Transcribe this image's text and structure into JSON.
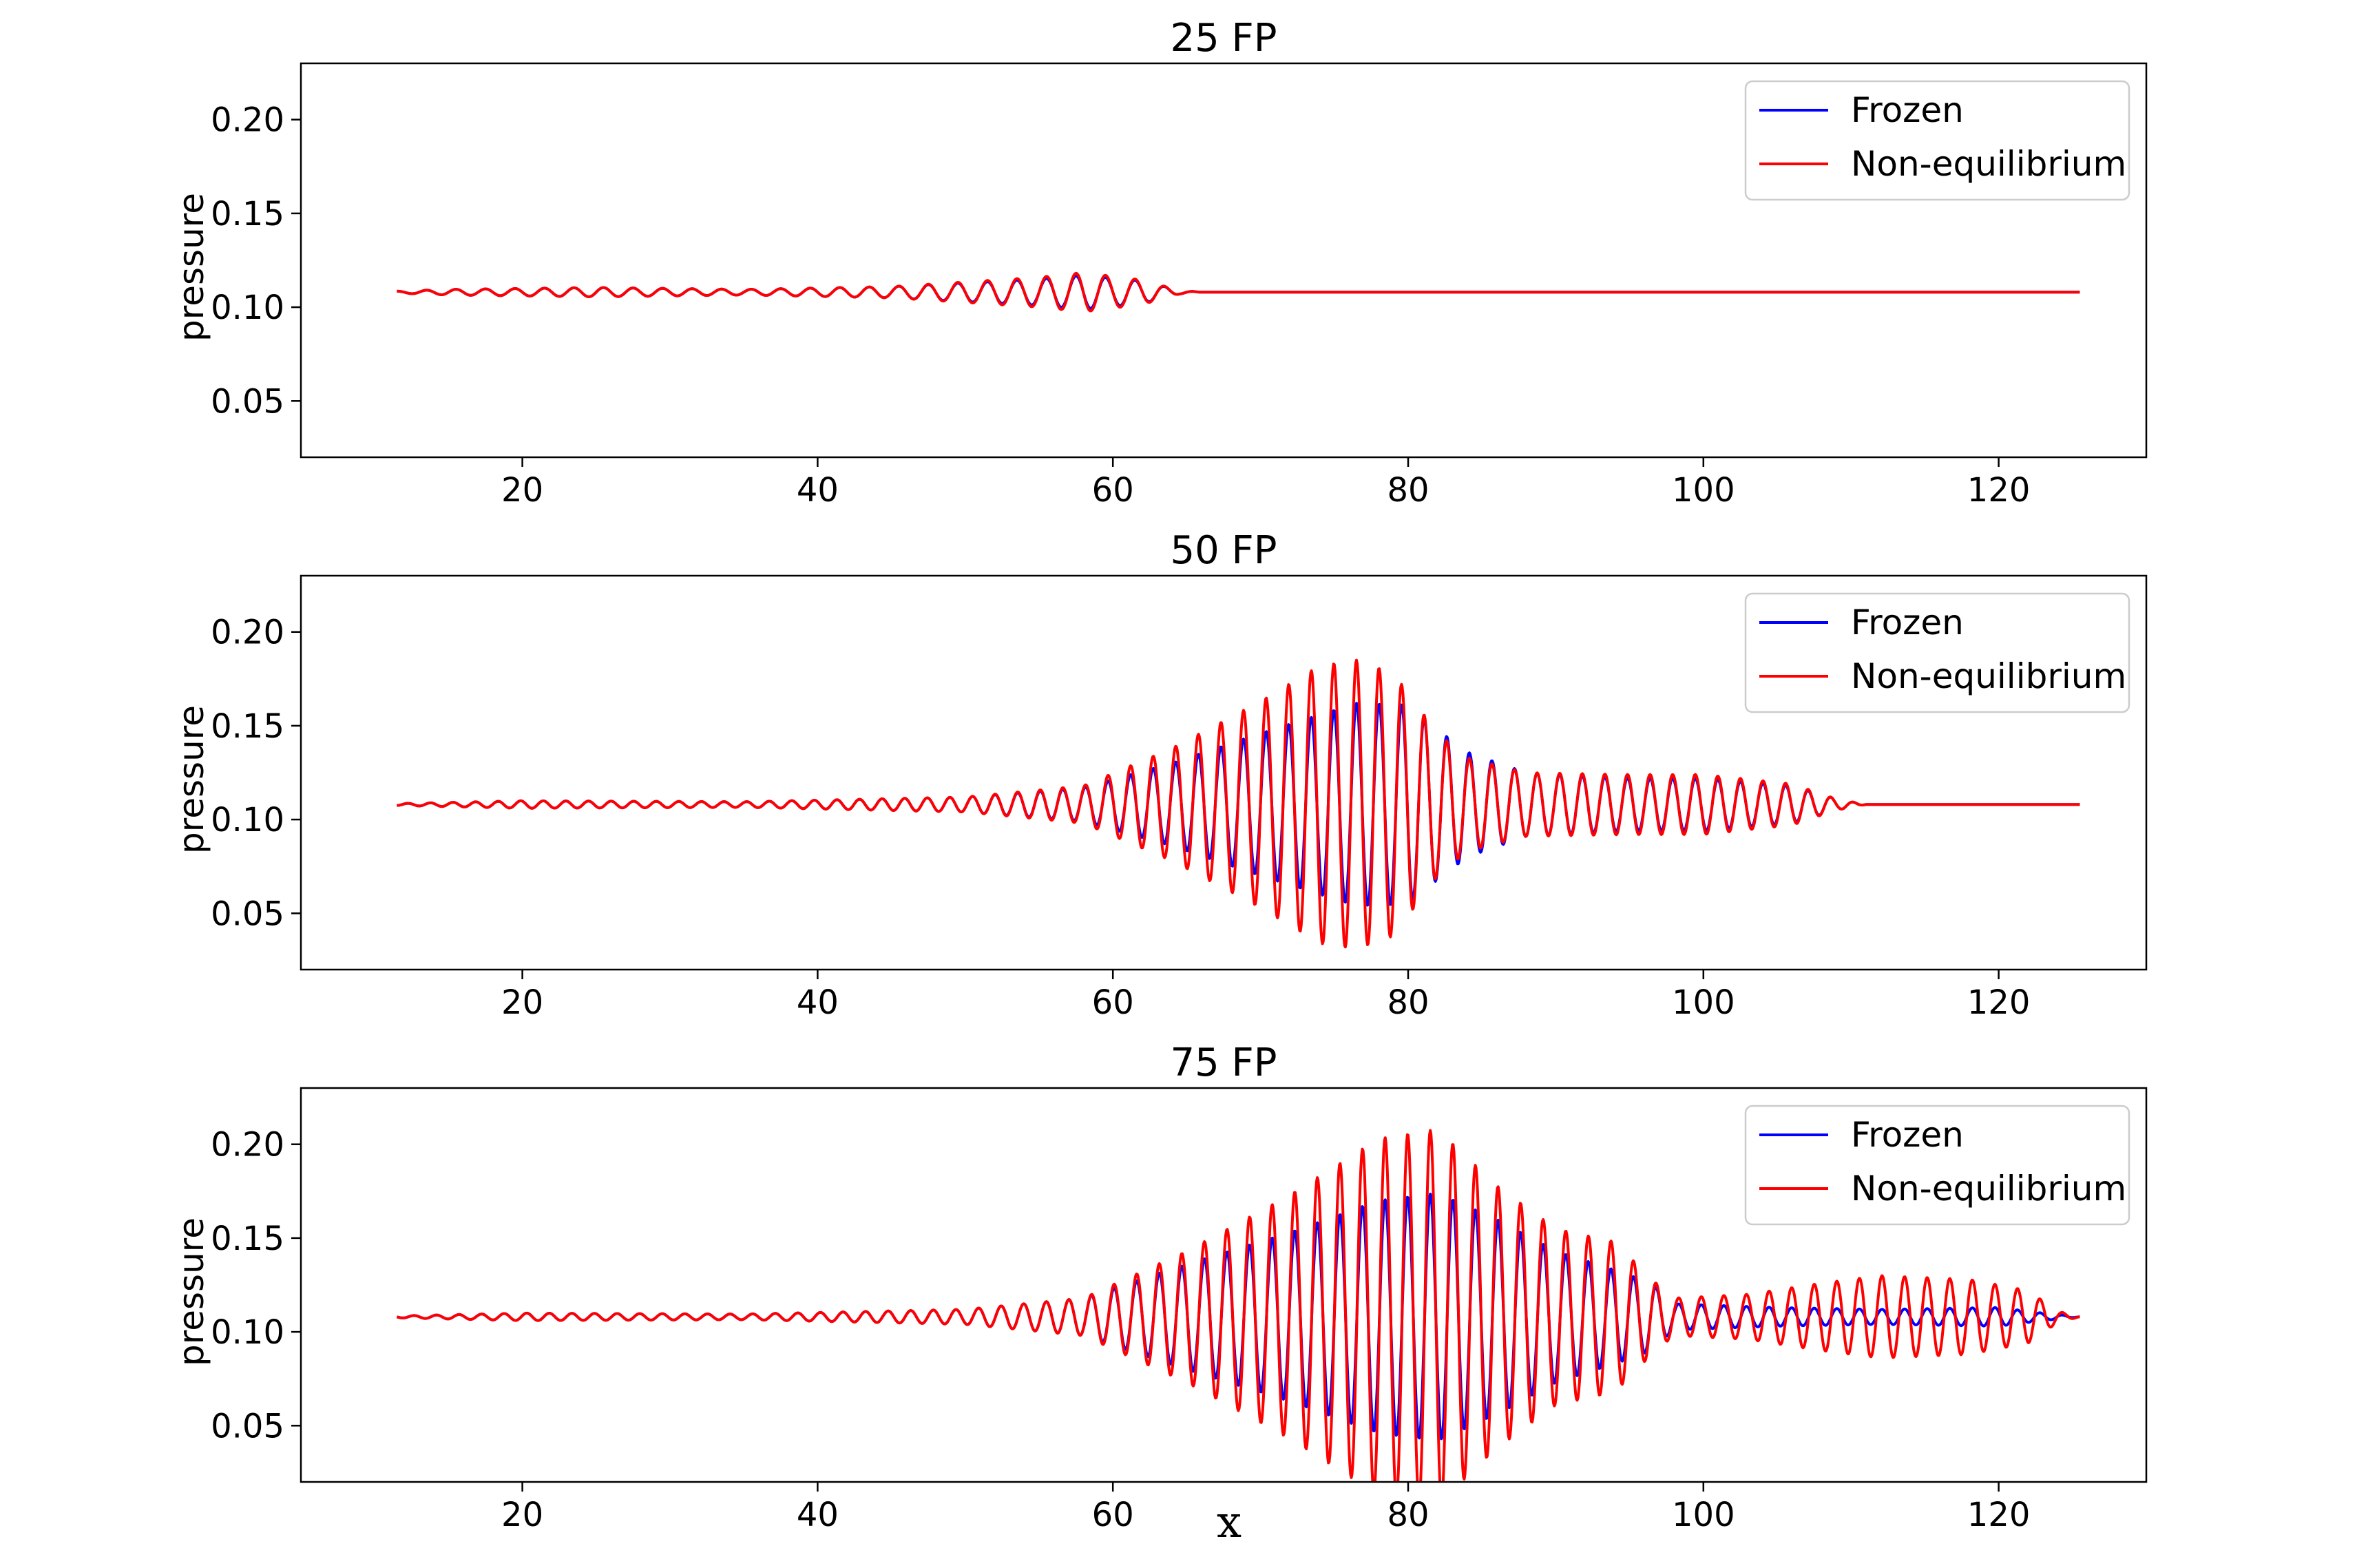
{
  "figure": {
    "xlabel": "x"
  },
  "chart_data": [
    {
      "type": "line",
      "title": "25 FP",
      "xlabel": "",
      "ylabel": "pressure",
      "xlim": [
        5,
        130
      ],
      "ylim": [
        0.02,
        0.23
      ],
      "xticks": [
        "20",
        "40",
        "60",
        "80",
        "100",
        "120"
      ],
      "yticks": [
        "0.05",
        "0.10",
        "0.15",
        "0.20"
      ],
      "legend": "top-right",
      "grid": false,
      "x_range": [
        11.5,
        125.5
      ],
      "series": [
        {
          "name": "Frozen",
          "color": "#0000ff",
          "baseline": 0.108,
          "wavelength": 2.0,
          "peak_x": 57.5,
          "envelope": [
            [
              11.5,
              0.0005
            ],
            [
              15,
              0.0015
            ],
            [
              25,
              0.0025
            ],
            [
              35,
              0.0015
            ],
            [
              45,
              0.003
            ],
            [
              55,
              0.007
            ],
            [
              58,
              0.009
            ],
            [
              62,
              0.006
            ],
            [
              64.5,
              0.001
            ],
            [
              66,
              0.0
            ],
            [
              125.5,
              0.0
            ]
          ]
        },
        {
          "name": "Non-equilibrium",
          "color": "#ff0000",
          "baseline": 0.108,
          "wavelength": 2.0,
          "peak_x": 57.5,
          "envelope": [
            [
              11.5,
              0.0005
            ],
            [
              15,
              0.0015
            ],
            [
              25,
              0.0025
            ],
            [
              35,
              0.0015
            ],
            [
              45,
              0.003
            ],
            [
              55,
              0.008
            ],
            [
              58,
              0.0105
            ],
            [
              62,
              0.0065
            ],
            [
              64.5,
              0.001
            ],
            [
              66,
              0.0
            ],
            [
              125.5,
              0.0
            ]
          ]
        }
      ]
    },
    {
      "type": "line",
      "title": "50 FP",
      "xlabel": "",
      "ylabel": "pressure",
      "xlim": [
        5,
        130
      ],
      "ylim": [
        0.02,
        0.23
      ],
      "xticks": [
        "20",
        "40",
        "60",
        "80",
        "100",
        "120"
      ],
      "yticks": [
        "0.05",
        "0.10",
        "0.15",
        "0.20"
      ],
      "legend": "top-right",
      "grid": false,
      "x_range": [
        11.5,
        125.5
      ],
      "series": [
        {
          "name": "Frozen",
          "color": "#0000ff",
          "baseline": 0.108,
          "wavelength": 1.53,
          "peak_x": 76.5,
          "envelope": [
            [
              11.5,
              0.0005
            ],
            [
              20,
              0.002
            ],
            [
              35,
              0.0015
            ],
            [
              50,
              0.004
            ],
            [
              58,
              0.009
            ],
            [
              64,
              0.022
            ],
            [
              70,
              0.038
            ],
            [
              76.5,
              0.054
            ],
            [
              80,
              0.053
            ],
            [
              82,
              0.04
            ],
            [
              84,
              0.028
            ],
            [
              88,
              0.017
            ],
            [
              95,
              0.014
            ],
            [
              100,
              0.014
            ],
            [
              106,
              0.01
            ],
            [
              109,
              0.003
            ],
            [
              111,
              0.0
            ],
            [
              125.5,
              0.0
            ]
          ]
        },
        {
          "name": "Non-equilibrium",
          "color": "#ff0000",
          "baseline": 0.108,
          "wavelength": 1.53,
          "peak_x": 76.5,
          "envelope": [
            [
              11.5,
              0.0005
            ],
            [
              20,
              0.002
            ],
            [
              35,
              0.0015
            ],
            [
              50,
              0.004
            ],
            [
              58,
              0.01
            ],
            [
              64,
              0.03
            ],
            [
              70,
              0.055
            ],
            [
              74,
              0.074
            ],
            [
              76.5,
              0.077
            ],
            [
              79,
              0.07
            ],
            [
              82,
              0.038
            ],
            [
              84,
              0.025
            ],
            [
              88,
              0.017
            ],
            [
              95,
              0.016
            ],
            [
              100,
              0.016
            ],
            [
              106,
              0.011
            ],
            [
              109,
              0.003
            ],
            [
              111,
              0.0
            ],
            [
              125.5,
              0.0
            ]
          ]
        }
      ]
    },
    {
      "type": "line",
      "title": "75 FP",
      "xlabel": "",
      "ylabel": "pressure",
      "xlim": [
        5,
        130
      ],
      "ylim": [
        0.02,
        0.23
      ],
      "xticks": [
        "20",
        "40",
        "60",
        "80",
        "100",
        "120"
      ],
      "yticks": [
        "0.05",
        "0.10",
        "0.15",
        "0.20"
      ],
      "legend": "top-right",
      "grid": false,
      "x_range": [
        11.5,
        125.5
      ],
      "series": [
        {
          "name": "Frozen",
          "color": "#0000ff",
          "baseline": 0.108,
          "wavelength": 1.53,
          "peak_x": 81.5,
          "envelope": [
            [
              11.5,
              0.0005
            ],
            [
              20,
              0.002
            ],
            [
              35,
              0.0015
            ],
            [
              50,
              0.004
            ],
            [
              58,
              0.01
            ],
            [
              65,
              0.028
            ],
            [
              72,
              0.045
            ],
            [
              78,
              0.062
            ],
            [
              82,
              0.066
            ],
            [
              86,
              0.052
            ],
            [
              90,
              0.035
            ],
            [
              94,
              0.025
            ],
            [
              96.5,
              0.018
            ],
            [
              98,
              0.007
            ],
            [
              105,
              0.005
            ],
            [
              112,
              0.004
            ],
            [
              120,
              0.005
            ],
            [
              123,
              0.002
            ],
            [
              125.5,
              0.0
            ]
          ]
        },
        {
          "name": "Non-equilibrium",
          "color": "#ff0000",
          "baseline": 0.108,
          "wavelength": 1.53,
          "peak_x": 81.5,
          "envelope": [
            [
              11.5,
              0.0005
            ],
            [
              20,
              0.002
            ],
            [
              35,
              0.0015
            ],
            [
              50,
              0.004
            ],
            [
              58,
              0.01
            ],
            [
              65,
              0.035
            ],
            [
              72,
              0.065
            ],
            [
              78,
              0.095
            ],
            [
              82,
              0.1
            ],
            [
              86,
              0.07
            ],
            [
              90,
              0.047
            ],
            [
              94,
              0.04
            ],
            [
              96.5,
              0.02
            ],
            [
              98,
              0.01
            ],
            [
              103,
              0.012
            ],
            [
              108,
              0.018
            ],
            [
              112,
              0.022
            ],
            [
              118,
              0.02
            ],
            [
              122,
              0.014
            ],
            [
              124,
              0.003
            ],
            [
              125.5,
              0.0
            ]
          ]
        }
      ]
    }
  ]
}
